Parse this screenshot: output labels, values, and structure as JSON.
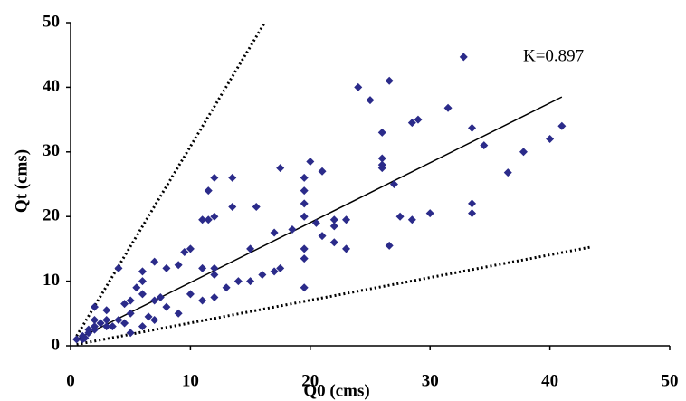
{
  "chart_data": {
    "type": "scatter",
    "x_label": "Q0 (cms)",
    "y_label": "Qt (cms)",
    "annotation": "K=0.897",
    "xlim": [
      0,
      50
    ],
    "ylim": [
      0,
      50
    ],
    "xticks": [
      0,
      10,
      20,
      30,
      40,
      50
    ],
    "yticks": [
      0,
      10,
      20,
      30,
      40,
      50
    ],
    "grid": false,
    "points": {
      "color": "#2b2b8a",
      "x": [
        32.8,
        24,
        26.6,
        25,
        31.5,
        29,
        28.5,
        26,
        33.5,
        41,
        40,
        37.8,
        34.5,
        36.5,
        26,
        26,
        26,
        27,
        27.5,
        28.5,
        30,
        33.5,
        33.5,
        26.6,
        20,
        21,
        19.5,
        19.5,
        19.5,
        19.5,
        20.5,
        19.5,
        19.5,
        19.5,
        22,
        23,
        22,
        21,
        22,
        23,
        17.5,
        12,
        13.5,
        11.5,
        13.5,
        12,
        11,
        11.5,
        15.5,
        15,
        17,
        18.5,
        16,
        17.5,
        17,
        14,
        15,
        12,
        11,
        12,
        12,
        11,
        13,
        10,
        9.5,
        10,
        9,
        8,
        7,
        6,
        6,
        6,
        5.5,
        5,
        7,
        7.5,
        8,
        9,
        6.5,
        4,
        4,
        3,
        3,
        2.5,
        2,
        2,
        1.5,
        1.5,
        1,
        1,
        2,
        3,
        2,
        4.5,
        5,
        3.5,
        4.5,
        0.5,
        1.2,
        5,
        6,
        7
      ],
      "y": [
        44.7,
        40,
        41,
        38,
        36.8,
        35,
        34.5,
        33,
        33.7,
        34,
        32,
        30,
        31,
        26.8,
        29,
        28,
        27.5,
        25,
        20,
        19.5,
        20.5,
        22,
        20.5,
        15.5,
        28.5,
        27,
        26,
        24,
        22,
        20,
        19,
        15,
        13.5,
        9,
        19.5,
        19.5,
        18.5,
        17,
        16,
        15,
        27.5,
        26,
        26,
        24,
        21.5,
        20,
        19.5,
        19.5,
        21.5,
        15,
        17.5,
        18,
        11,
        12,
        11.5,
        10,
        10,
        12,
        12,
        11,
        7.5,
        7,
        9,
        8,
        14.5,
        15,
        12.5,
        12,
        13,
        11.5,
        10,
        8,
        9,
        7,
        7,
        7.5,
        6,
        5,
        4.5,
        4,
        12,
        4,
        3,
        3.5,
        3,
        2.5,
        2,
        2.5,
        1.5,
        1,
        4,
        5.5,
        6,
        6.5,
        5,
        3,
        3.5,
        1,
        1.2,
        2,
        3,
        4
      ]
    },
    "lines": [
      {
        "style": "solid",
        "color": "#000000",
        "x": [
          0.5,
          41
        ],
        "y": [
          1,
          38.5
        ]
      },
      {
        "style": "dotted",
        "color": "#000000",
        "x": [
          0.5,
          16.2
        ],
        "y": [
          1.5,
          50
        ]
      },
      {
        "style": "dotted",
        "color": "#000000",
        "x": [
          0.5,
          43.5
        ],
        "y": [
          0.2,
          15.3
        ]
      }
    ]
  }
}
